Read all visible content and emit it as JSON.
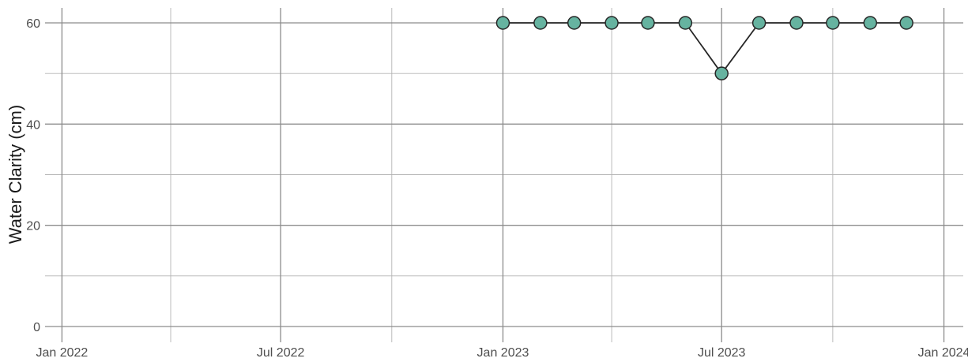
{
  "chart_data": {
    "type": "line",
    "ylabel": "Water Clarity (cm)",
    "xlabel": "",
    "ylim": [
      0,
      60
    ],
    "xlim": [
      "2021-12-18",
      "2024-01-17"
    ],
    "y_major_ticks": [
      0,
      20,
      40,
      60
    ],
    "y_minor_ticks": [
      10,
      30,
      50
    ],
    "x_major_ticks": [
      {
        "date": "2022-01-01",
        "label": "Jan 2022"
      },
      {
        "date": "2022-07-01",
        "label": "Jul 2022"
      },
      {
        "date": "2023-01-01",
        "label": "Jan 2023"
      },
      {
        "date": "2023-07-01",
        "label": "Jul 2023"
      },
      {
        "date": "2024-01-01",
        "label": "Jan 2024"
      }
    ],
    "x_minor_ticks": [
      "2022-04-01",
      "2022-10-01",
      "2023-04-01",
      "2023-10-01"
    ],
    "grid": true,
    "point_color": "#66b3a0",
    "line_color": "#262626",
    "series": [
      {
        "x": [
          "2023-01-01",
          "2023-02-01",
          "2023-03-01",
          "2023-04-01",
          "2023-05-01",
          "2023-06-01",
          "2023-07-01",
          "2023-08-01",
          "2023-09-01",
          "2023-10-01",
          "2023-11-01",
          "2023-12-01"
        ],
        "y": [
          60,
          60,
          60,
          60,
          60,
          60,
          50,
          60,
          60,
          60,
          60,
          60
        ]
      }
    ]
  }
}
